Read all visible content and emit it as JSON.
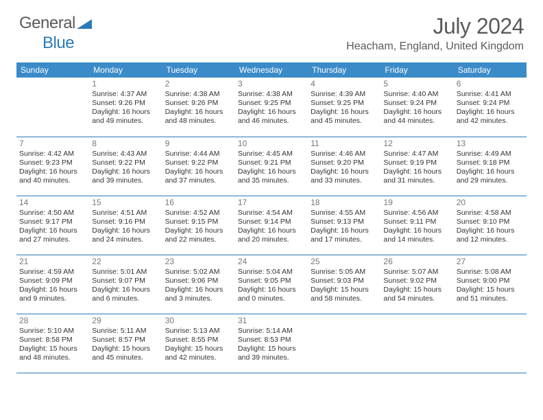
{
  "logo": {
    "text1": "General",
    "text2": "Blue"
  },
  "title": {
    "month": "July 2024",
    "location": "Heacham, England, United Kingdom"
  },
  "colors": {
    "header_bg": "#3b8bc9",
    "header_text": "#ffffff",
    "rule": "#2a7ab9",
    "daynum": "#777777",
    "body_text": "#333333",
    "title_text": "#5a5a5a",
    "logo_gray": "#5a5a5a",
    "logo_blue": "#2a7ab9",
    "background": "#ffffff"
  },
  "typography": {
    "title_fontsize": 32,
    "location_fontsize": 16,
    "header_fontsize": 12,
    "daynum_fontsize": 12,
    "cell_fontsize": 10.5,
    "logo_fontsize": 24
  },
  "calendar": {
    "type": "table",
    "columns": [
      "Sunday",
      "Monday",
      "Tuesday",
      "Wednesday",
      "Thursday",
      "Friday",
      "Saturday"
    ],
    "weeks": [
      [
        null,
        {
          "d": "1",
          "sr": "4:37 AM",
          "ss": "9:26 PM",
          "dl": "16 hours and 49 minutes."
        },
        {
          "d": "2",
          "sr": "4:38 AM",
          "ss": "9:26 PM",
          "dl": "16 hours and 48 minutes."
        },
        {
          "d": "3",
          "sr": "4:38 AM",
          "ss": "9:25 PM",
          "dl": "16 hours and 46 minutes."
        },
        {
          "d": "4",
          "sr": "4:39 AM",
          "ss": "9:25 PM",
          "dl": "16 hours and 45 minutes."
        },
        {
          "d": "5",
          "sr": "4:40 AM",
          "ss": "9:24 PM",
          "dl": "16 hours and 44 minutes."
        },
        {
          "d": "6",
          "sr": "4:41 AM",
          "ss": "9:24 PM",
          "dl": "16 hours and 42 minutes."
        }
      ],
      [
        {
          "d": "7",
          "sr": "4:42 AM",
          "ss": "9:23 PM",
          "dl": "16 hours and 40 minutes."
        },
        {
          "d": "8",
          "sr": "4:43 AM",
          "ss": "9:22 PM",
          "dl": "16 hours and 39 minutes."
        },
        {
          "d": "9",
          "sr": "4:44 AM",
          "ss": "9:22 PM",
          "dl": "16 hours and 37 minutes."
        },
        {
          "d": "10",
          "sr": "4:45 AM",
          "ss": "9:21 PM",
          "dl": "16 hours and 35 minutes."
        },
        {
          "d": "11",
          "sr": "4:46 AM",
          "ss": "9:20 PM",
          "dl": "16 hours and 33 minutes."
        },
        {
          "d": "12",
          "sr": "4:47 AM",
          "ss": "9:19 PM",
          "dl": "16 hours and 31 minutes."
        },
        {
          "d": "13",
          "sr": "4:49 AM",
          "ss": "9:18 PM",
          "dl": "16 hours and 29 minutes."
        }
      ],
      [
        {
          "d": "14",
          "sr": "4:50 AM",
          "ss": "9:17 PM",
          "dl": "16 hours and 27 minutes."
        },
        {
          "d": "15",
          "sr": "4:51 AM",
          "ss": "9:16 PM",
          "dl": "16 hours and 24 minutes."
        },
        {
          "d": "16",
          "sr": "4:52 AM",
          "ss": "9:15 PM",
          "dl": "16 hours and 22 minutes."
        },
        {
          "d": "17",
          "sr": "4:54 AM",
          "ss": "9:14 PM",
          "dl": "16 hours and 20 minutes."
        },
        {
          "d": "18",
          "sr": "4:55 AM",
          "ss": "9:13 PM",
          "dl": "16 hours and 17 minutes."
        },
        {
          "d": "19",
          "sr": "4:56 AM",
          "ss": "9:11 PM",
          "dl": "16 hours and 14 minutes."
        },
        {
          "d": "20",
          "sr": "4:58 AM",
          "ss": "9:10 PM",
          "dl": "16 hours and 12 minutes."
        }
      ],
      [
        {
          "d": "21",
          "sr": "4:59 AM",
          "ss": "9:09 PM",
          "dl": "16 hours and 9 minutes."
        },
        {
          "d": "22",
          "sr": "5:01 AM",
          "ss": "9:07 PM",
          "dl": "16 hours and 6 minutes."
        },
        {
          "d": "23",
          "sr": "5:02 AM",
          "ss": "9:06 PM",
          "dl": "16 hours and 3 minutes."
        },
        {
          "d": "24",
          "sr": "5:04 AM",
          "ss": "9:05 PM",
          "dl": "16 hours and 0 minutes."
        },
        {
          "d": "25",
          "sr": "5:05 AM",
          "ss": "9:03 PM",
          "dl": "15 hours and 58 minutes."
        },
        {
          "d": "26",
          "sr": "5:07 AM",
          "ss": "9:02 PM",
          "dl": "15 hours and 54 minutes."
        },
        {
          "d": "27",
          "sr": "5:08 AM",
          "ss": "9:00 PM",
          "dl": "15 hours and 51 minutes."
        }
      ],
      [
        {
          "d": "28",
          "sr": "5:10 AM",
          "ss": "8:58 PM",
          "dl": "15 hours and 48 minutes."
        },
        {
          "d": "29",
          "sr": "5:11 AM",
          "ss": "8:57 PM",
          "dl": "15 hours and 45 minutes."
        },
        {
          "d": "30",
          "sr": "5:13 AM",
          "ss": "8:55 PM",
          "dl": "15 hours and 42 minutes."
        },
        {
          "d": "31",
          "sr": "5:14 AM",
          "ss": "8:53 PM",
          "dl": "15 hours and 39 minutes."
        },
        null,
        null,
        null
      ]
    ]
  },
  "labels": {
    "sunrise": "Sunrise:",
    "sunset": "Sunset:",
    "daylight": "Daylight:"
  }
}
